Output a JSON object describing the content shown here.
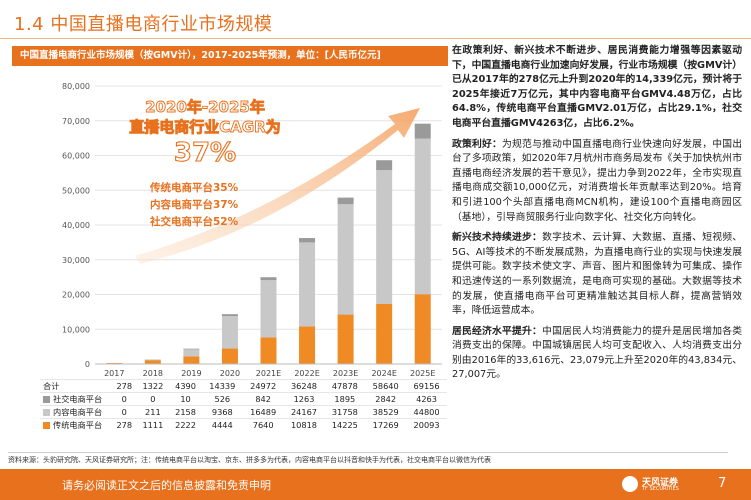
{
  "title": "1.4 中国直播电商行业市场规模",
  "chart_caption": "中国直播电商行业市场规模（按GMV计），2017-2025年预测，单位：[人民币亿元]",
  "chart_data": {
    "type": "bar",
    "stacked": true,
    "categories": [
      "2017",
      "2018",
      "2019",
      "2020",
      "2021E",
      "2022E",
      "2023E",
      "2024E",
      "2025E"
    ],
    "ylim": [
      0,
      80000
    ],
    "yticks": [
      "0",
      "10,000",
      "20,000",
      "30,000",
      "40,000",
      "50,000",
      "60,000",
      "70,000",
      "80,000"
    ],
    "grid": true,
    "series": [
      {
        "name": "传统电商平台",
        "color": "#f08a24",
        "values": [
          278,
          1111,
          2222,
          4444,
          7640,
          10818,
          14225,
          17269,
          20093
        ]
      },
      {
        "name": "内容电商平台",
        "color": "#c8c8c8",
        "values": [
          0,
          211,
          2158,
          9368,
          16489,
          24167,
          31758,
          38529,
          44800
        ]
      },
      {
        "name": "社交电商平台",
        "color": "#9a9a9a",
        "values": [
          0,
          0,
          10,
          526,
          842,
          1263,
          1895,
          2842,
          4263
        ]
      }
    ],
    "totals_label": "合计",
    "totals": [
      278,
      1322,
      4390,
      14339,
      24972,
      36248,
      47878,
      58640,
      69156
    ],
    "annotation": {
      "headline_line1": "2020年-2025年",
      "headline_line2": "直播电商行业CAGR为",
      "headline_value": "37%",
      "items": [
        "传统电商平台35%",
        "内容电商平台37%",
        "社交电商平台52%"
      ]
    }
  },
  "table_rows": [
    {
      "label": "合计",
      "values": [
        "278",
        "1322",
        "4390",
        "14339",
        "24972",
        "36248",
        "47878",
        "58640",
        "69156"
      ]
    },
    {
      "label": "社交电商平台",
      "color": "#9a9a9a",
      "values": [
        "0",
        "0",
        "10",
        "526",
        "842",
        "1263",
        "1895",
        "2842",
        "4263"
      ]
    },
    {
      "label": "内容电商平台",
      "color": "#c8c8c8",
      "values": [
        "0",
        "211",
        "2158",
        "9368",
        "16489",
        "24167",
        "31758",
        "38529",
        "44800"
      ]
    },
    {
      "label": "传统电商平台",
      "color": "#f08a24",
      "values": [
        "278",
        "1111",
        "2222",
        "4444",
        "7640",
        "10818",
        "14225",
        "17269",
        "20093"
      ]
    }
  ],
  "source_note": "资料来源：头豹研究院、天风证券研究所；注：传统电商平台以淘宝、京东、拼多多为代表，内容电商平台以抖音和快手为代表，社交电商平台以微信为代表",
  "right_text": {
    "intro": "在政策利好、新兴技术不断进步、居民消费能力增强等因素驱动下，中国直播电商行业加速向好发展，行业市场规模（按GMV计）已从2017年的278亿元上升到2020年的14,339亿元，预计将于2025年接近7万亿元，其中内容电商平台GMV4.48万亿，占比64.8%，传统电商平台直播GMV2.01万亿，占比29.1%，社交电商平台直播GMV4263亿，占比6.2%。",
    "policy_heading": "政策利好：",
    "policy_body": "为规范与推动中国直播电商行业快速向好发展，中国出台了多项政策，如2020年7月杭州市商务局发布《关于加快杭州市直播电商经济发展的若干意见》，提出力争到2022年，全市实现直播电商成交额10,000亿元，对消费增长年贡献率达到20%。培育和引进100个头部直播电商MCN机构，建设100个直播电商园区（基地），引导商贸服务行业向数字化、社交化方向转化。",
    "tech_heading": "新兴技术持续进步：",
    "tech_body": "数字技术、云计算、大数据、直播、短视频、5G、AI等技术的不断发展成熟，为直播电商行业的实现与快速发展提供可能。数字技术使文字、声音、图片和图像转为可集成、操作和迅速传送的一系列数据流，是电商可实现的基础。大数据等技术的发展，使直播电商平台可更精准触达其目标人群，提高营销效率，降低运营成本。",
    "income_heading": "居民经济水平提升：",
    "income_body": "中国居民人均消费能力的提升是居民增加各类消费支出的保障。中国城镇居民人均可支配收入、人均消费支出分别由2016年的33,616元、23,079元上升至2020年的43,834元、27,007元。"
  },
  "footer": {
    "disclaimer": "请务必阅读正文之后的信息披露和免责申明",
    "logo_text": "天风证券",
    "logo_sub": "TF SECURITIES",
    "page_number": "7"
  }
}
